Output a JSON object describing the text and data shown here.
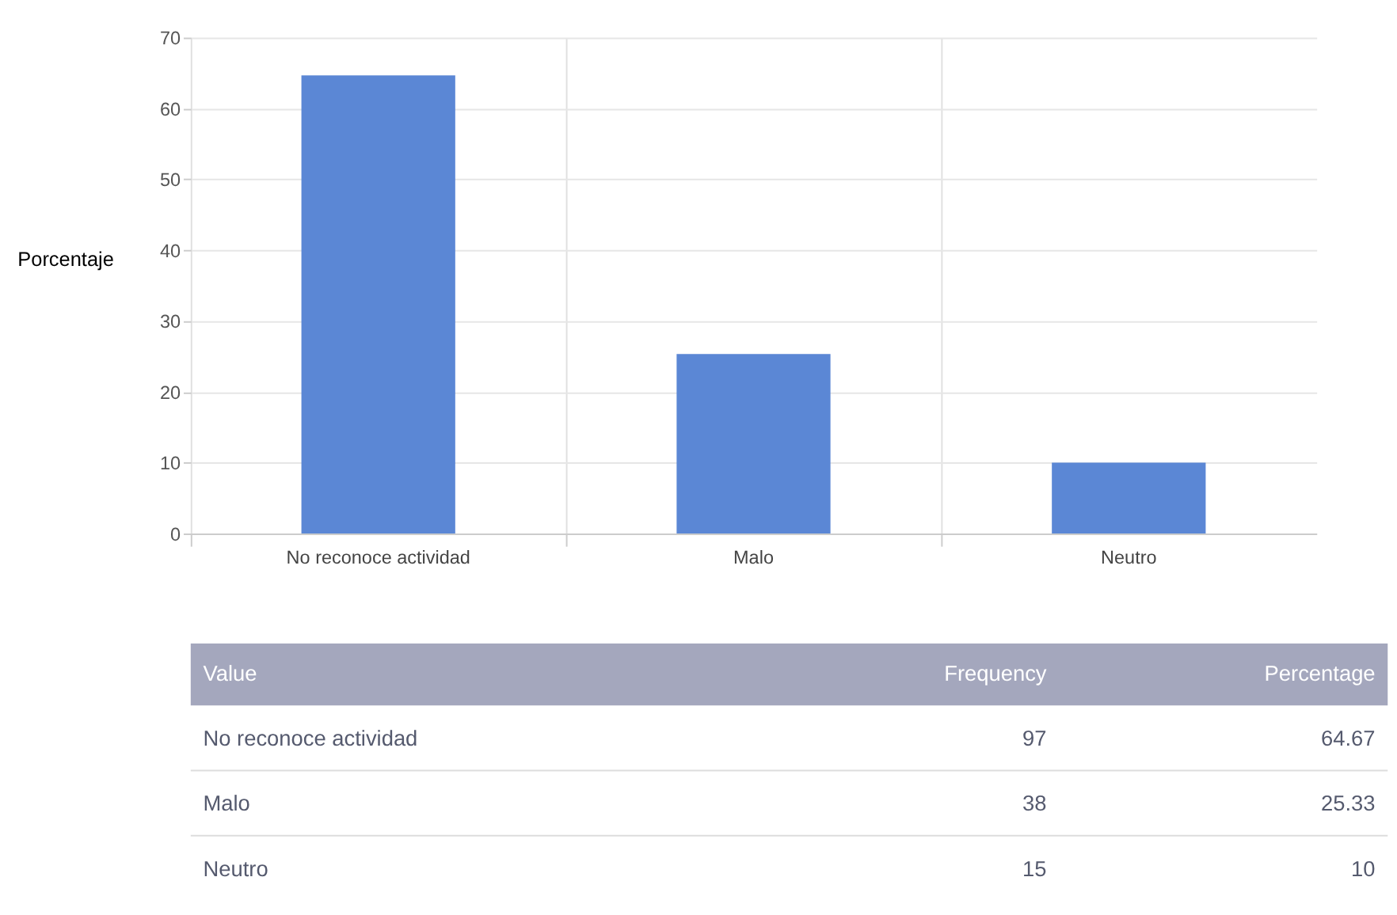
{
  "chart_data": {
    "type": "bar",
    "ylabel": "Porcentaje",
    "categories": [
      "No reconoce actividad",
      "Malo",
      "Neutro"
    ],
    "values": [
      64.67,
      25.33,
      10
    ],
    "color": "#5b87d5",
    "ylim": [
      0,
      70
    ],
    "yticks": [
      0,
      10,
      20,
      30,
      40,
      50,
      60,
      70
    ],
    "grid": true,
    "annotations": [
      "Value",
      "Frequency",
      "Percentage",
      "97",
      "38",
      "15",
      "64.67",
      "25.33",
      "10"
    ]
  }
}
